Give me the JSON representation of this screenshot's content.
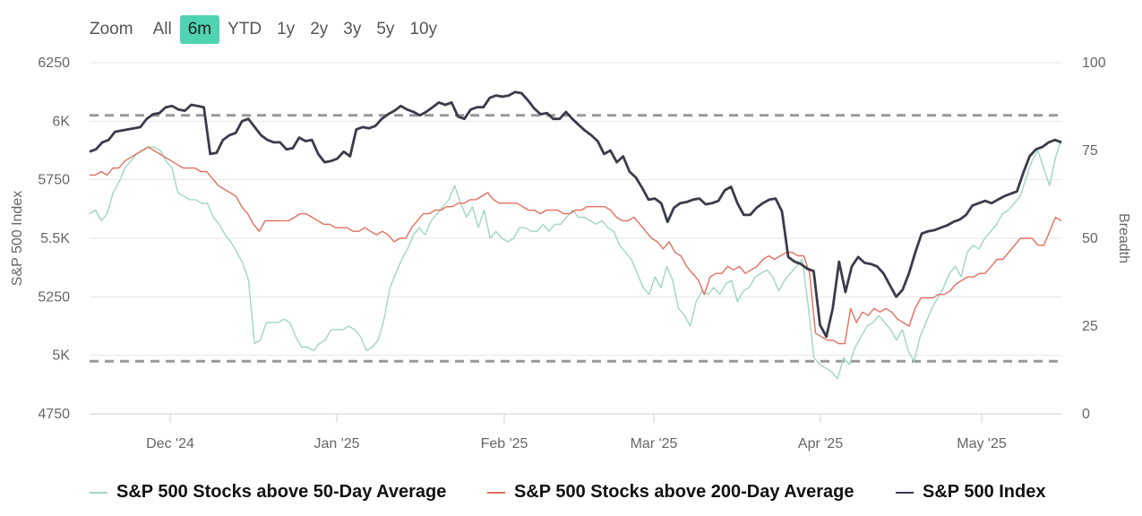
{
  "range_selector": {
    "label": "Zoom",
    "buttons": [
      "All",
      "6m",
      "YTD",
      "1y",
      "2y",
      "3y",
      "5y",
      "10y"
    ],
    "selected": "6m"
  },
  "chart_data": {
    "type": "line",
    "x_labels": [
      "Dec '24",
      "Jan '25",
      "Feb '25",
      "Mar '25",
      "Apr '25",
      "May '25"
    ],
    "y_left": {
      "label": "S&P 500 Index",
      "range": [
        4750,
        6250
      ],
      "ticks": [
        4750,
        5000,
        5250,
        5500,
        5750,
        6000,
        6250
      ],
      "tick_labels": [
        "4750",
        "5K",
        "5250",
        "5.5K",
        "5750",
        "6K",
        "6250"
      ]
    },
    "y_right": {
      "label": "Breadth",
      "range": [
        0,
        100
      ],
      "ticks": [
        0,
        25,
        50,
        75,
        100
      ]
    },
    "reference_lines": [
      {
        "axis": "right",
        "value": 85,
        "style": "dashed"
      },
      {
        "axis": "right",
        "value": 15,
        "style": "dashed"
      }
    ],
    "grid": true,
    "legend_position": "bottom",
    "series": [
      {
        "name": "S&P 500 Stocks above 50-Day Average",
        "color": "#9fd6c3",
        "axis": "right",
        "values": [
          57,
          58,
          55,
          57,
          63,
          66,
          70,
          72,
          74,
          75,
          76,
          76,
          75,
          72,
          70,
          63,
          62,
          61,
          61,
          60,
          60,
          56,
          54,
          51,
          49,
          46,
          43,
          38,
          20,
          21,
          26,
          26,
          26,
          27,
          26,
          22,
          19,
          19,
          18,
          20,
          21,
          24,
          24,
          24,
          25,
          24,
          22,
          18,
          19,
          21,
          27,
          36,
          40,
          44,
          47,
          51,
          53,
          51,
          55,
          57,
          59,
          61,
          65,
          60,
          56,
          59,
          53,
          58,
          50,
          52,
          50,
          49,
          50,
          53,
          53,
          52,
          52,
          54,
          52,
          54,
          54,
          56,
          58,
          56,
          56,
          55,
          54,
          55,
          53,
          52,
          48,
          46,
          44,
          40,
          36,
          34,
          39,
          36,
          42,
          38,
          30,
          28,
          25,
          32,
          35,
          34,
          36,
          34,
          37,
          38,
          32,
          35,
          36,
          39,
          40,
          41,
          39,
          35,
          38,
          40,
          42,
          44,
          31,
          16,
          14,
          13,
          12,
          10,
          16,
          14,
          19,
          22,
          25,
          26,
          28,
          26,
          24,
          21,
          24,
          18,
          15,
          22,
          26,
          30,
          33,
          36,
          40,
          42,
          39,
          46,
          48,
          47,
          50,
          52,
          54,
          57,
          58,
          60,
          62,
          67,
          72,
          75,
          70,
          65,
          73,
          78
        ]
      },
      {
        "name": "S&P 500 Stocks above 200-Day Average",
        "color": "#e26f5e",
        "axis": "right",
        "values": [
          68,
          68,
          69,
          68,
          70,
          70,
          72,
          73,
          74,
          75,
          76,
          75,
          74,
          73,
          72,
          71,
          70,
          70,
          70,
          69,
          69,
          67,
          65,
          64,
          63,
          62,
          59,
          57,
          54,
          52,
          55,
          55,
          55,
          55,
          55,
          56,
          57,
          57,
          56,
          55,
          54,
          54,
          53,
          53,
          53,
          52,
          52,
          53,
          52,
          51,
          52,
          51,
          49,
          50,
          50,
          53,
          55,
          57,
          57,
          58,
          58,
          59,
          59,
          60,
          60,
          61,
          61,
          62,
          63,
          61,
          60,
          60,
          60,
          60,
          59,
          58,
          58,
          57,
          58,
          58,
          58,
          57,
          57,
          58,
          58,
          59,
          59,
          59,
          59,
          58,
          56,
          55,
          55,
          56,
          54,
          52,
          50,
          49,
          47,
          49,
          46,
          45,
          42,
          40,
          38,
          34,
          39,
          40,
          40,
          42,
          41,
          42,
          40,
          41,
          42,
          44,
          45,
          44,
          45,
          46,
          46,
          45,
          45,
          40,
          23,
          22,
          21,
          21,
          20,
          20,
          30,
          26,
          29,
          28,
          30,
          29,
          30,
          29,
          27,
          26,
          25,
          30,
          33,
          33,
          33,
          34,
          34,
          35,
          37,
          38,
          39,
          39,
          40,
          40,
          42,
          44,
          44,
          46,
          48,
          50,
          50,
          50,
          48,
          48,
          52,
          56,
          55
        ]
      },
      {
        "name": "S&P 500 Index",
        "color": "#3a3b4a",
        "axis": "left",
        "values": [
          5870,
          5880,
          5910,
          5920,
          5955,
          5960,
          5965,
          5970,
          5975,
          6010,
          6030,
          6035,
          6060,
          6065,
          6050,
          6045,
          6070,
          6065,
          6060,
          5860,
          5865,
          5920,
          5940,
          5950,
          6000,
          6010,
          5975,
          5940,
          5920,
          5910,
          5910,
          5880,
          5885,
          5930,
          5915,
          5920,
          5860,
          5825,
          5830,
          5840,
          5870,
          5850,
          5965,
          5975,
          5970,
          5980,
          6010,
          6030,
          6045,
          6065,
          6050,
          6040,
          6025,
          6040,
          6060,
          6080,
          6070,
          6080,
          6020,
          6010,
          6050,
          6060,
          6060,
          6100,
          6110,
          6105,
          6110,
          6125,
          6120,
          6090,
          6055,
          6030,
          6035,
          6010,
          6010,
          6040,
          6010,
          5985,
          5960,
          5940,
          5915,
          5860,
          5875,
          5825,
          5850,
          5785,
          5760,
          5715,
          5665,
          5670,
          5650,
          5570,
          5630,
          5650,
          5655,
          5665,
          5670,
          5645,
          5650,
          5660,
          5705,
          5720,
          5650,
          5600,
          5600,
          5630,
          5650,
          5665,
          5670,
          5615,
          5420,
          5400,
          5390,
          5370,
          5360,
          5130,
          5080,
          5200,
          5400,
          5270,
          5380,
          5420,
          5395,
          5390,
          5380,
          5350,
          5300,
          5250,
          5280,
          5350,
          5440,
          5520,
          5530,
          5535,
          5545,
          5555,
          5570,
          5580,
          5600,
          5640,
          5650,
          5660,
          5650,
          5665,
          5680,
          5690,
          5700,
          5780,
          5850,
          5880,
          5890,
          5910,
          5920,
          5910
        ]
      }
    ]
  }
}
